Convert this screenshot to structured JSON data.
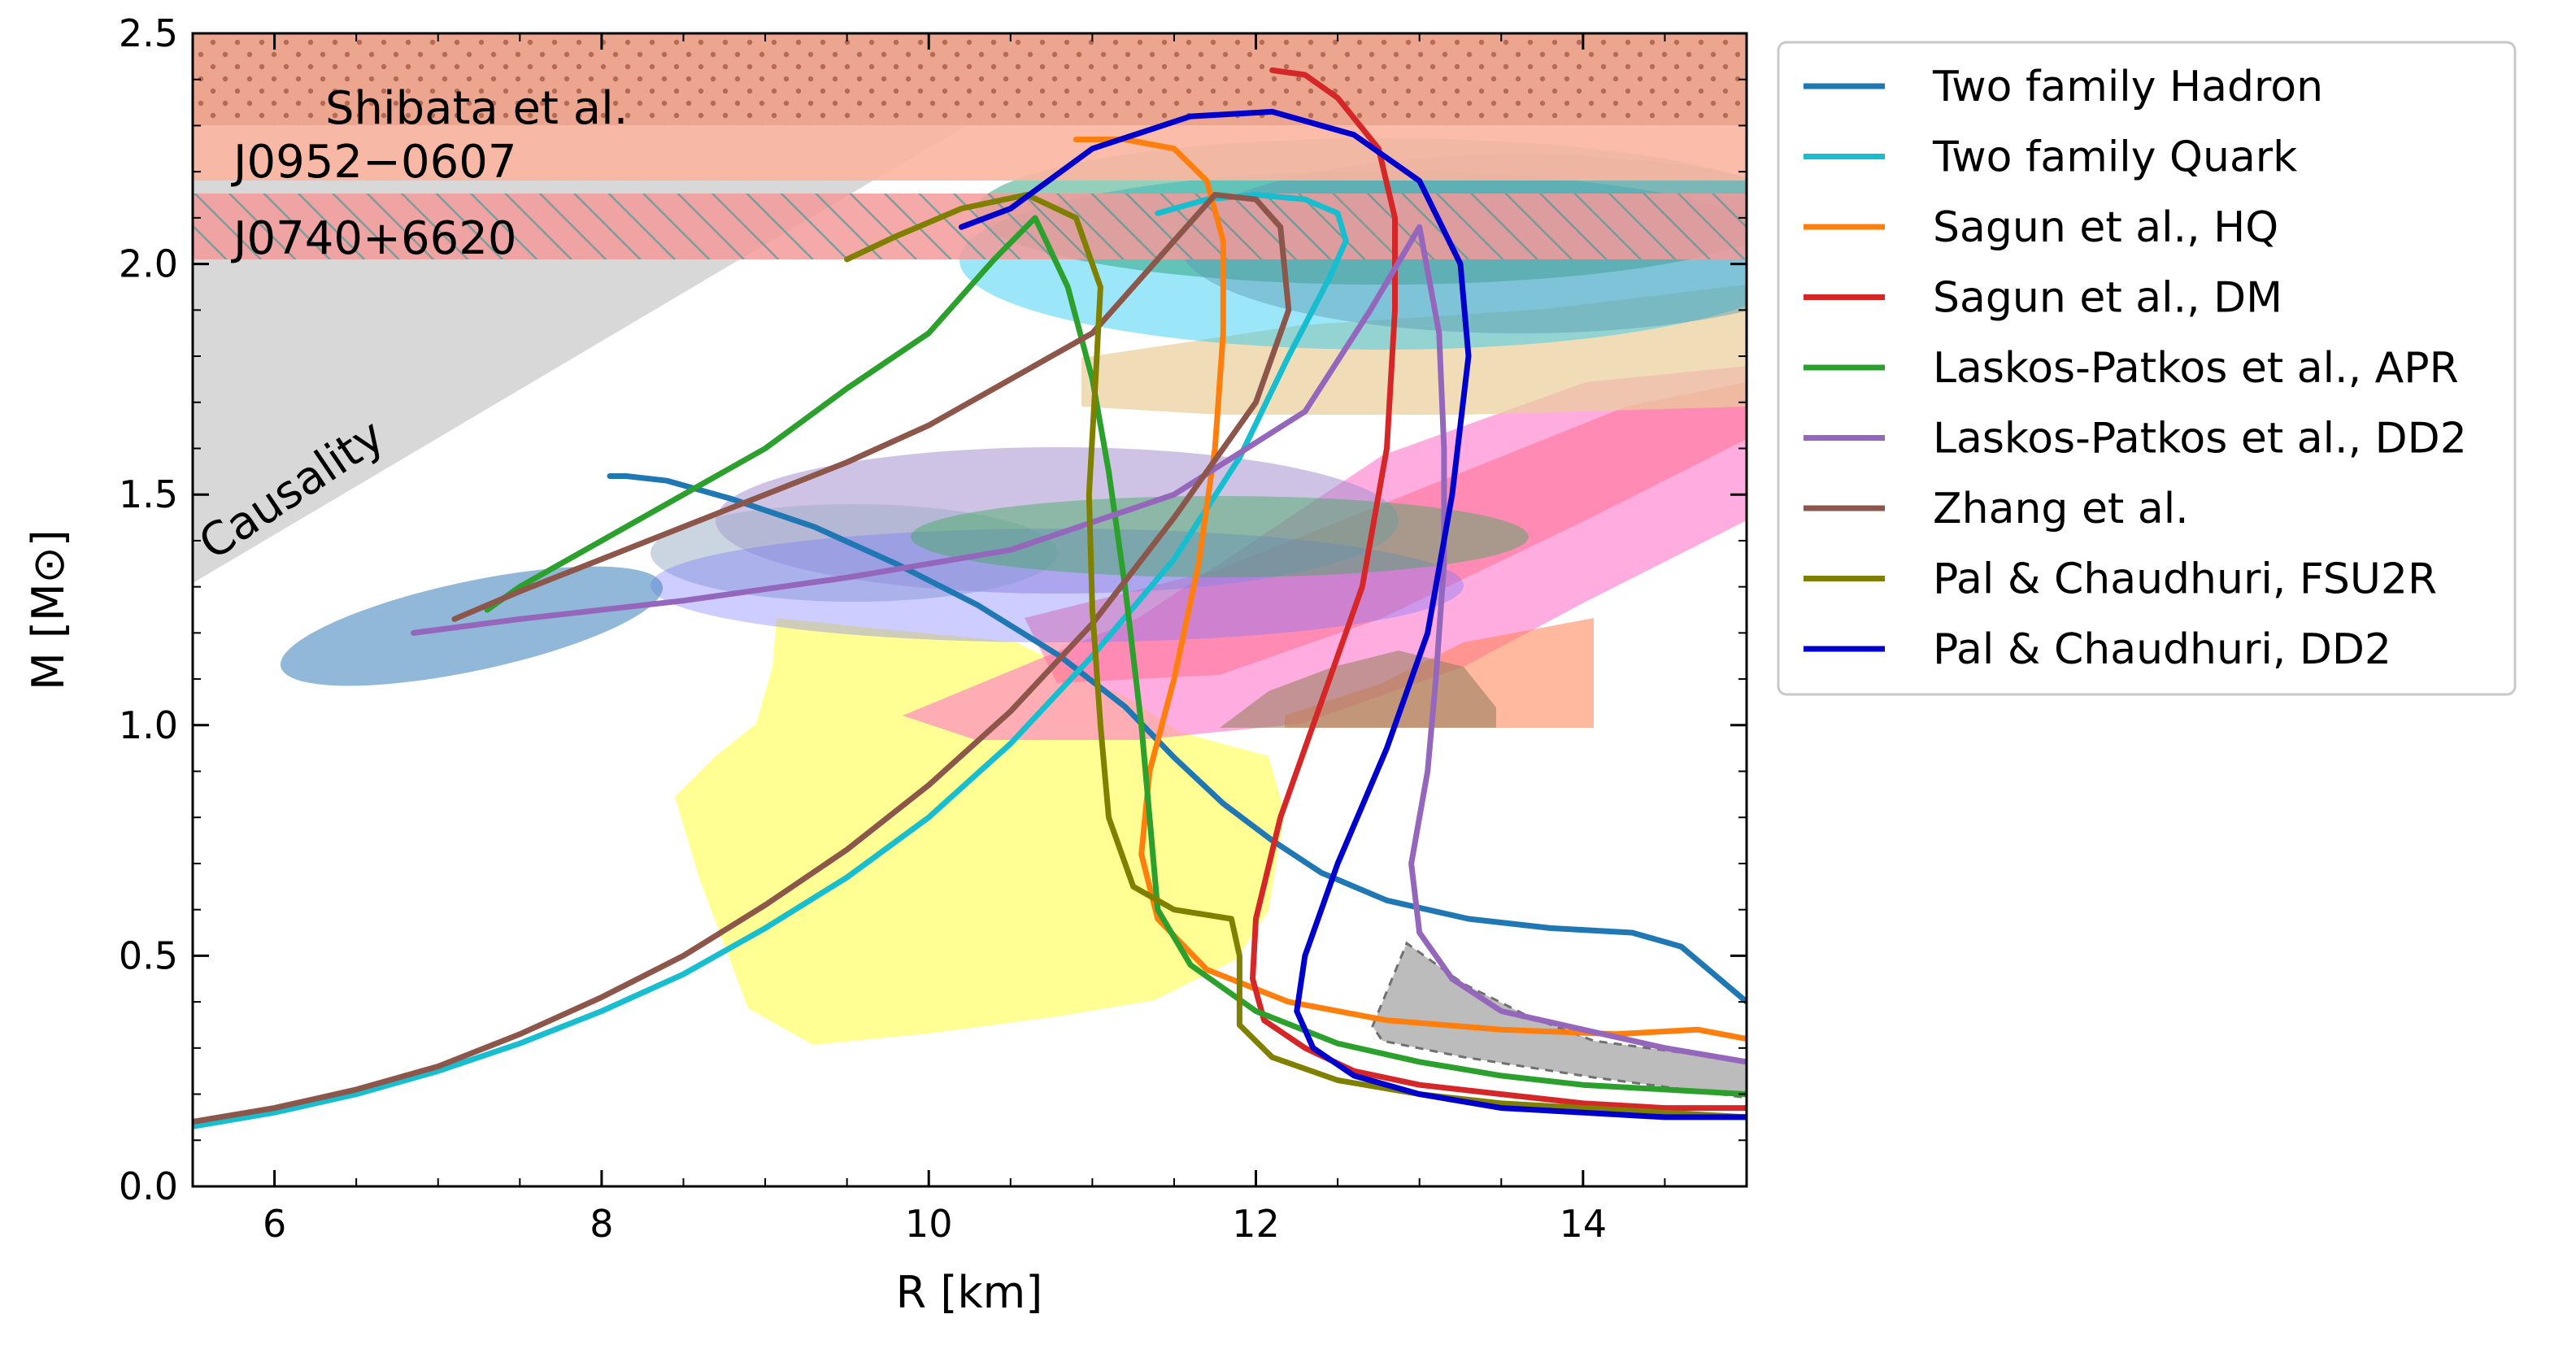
{
  "chart_data": {
    "type": "line",
    "title": "",
    "xlabel": "R [km]",
    "ylabel": "M [M⊙]",
    "xlim": [
      5.5,
      15.0
    ],
    "ylim": [
      0.0,
      2.5
    ],
    "xticks": [
      6,
      8,
      10,
      12,
      14
    ],
    "yticks": [
      0.0,
      0.5,
      1.0,
      1.5,
      2.0,
      2.5
    ],
    "xtick_labels": [
      "6",
      "8",
      "10",
      "12",
      "14"
    ],
    "ytick_labels": [
      "0.0",
      "0.5",
      "1.0",
      "1.5",
      "2.0",
      "2.5"
    ],
    "legend_position": "outside-right-top",
    "annotations": [
      {
        "text": "Shibata et al.",
        "x": 6.3,
        "y": 2.21,
        "rotation": 0
      },
      {
        "text": "J0952−0607",
        "x": 5.75,
        "y": 2.2,
        "rotation": 0
      },
      {
        "text": "J0740+6620",
        "x": 5.75,
        "y": 2.03,
        "rotation": 0
      },
      {
        "text": "Causality",
        "x": 5.6,
        "y": 1.37,
        "rotation": -34
      }
    ],
    "bands": [
      {
        "name": "Shibata et al.",
        "ymin": 2.3,
        "ymax": 2.5,
        "color": "#e8a48f",
        "style": "dotted"
      },
      {
        "name": "J0952−0607",
        "ymin": 2.18,
        "ymax": 2.5,
        "color": "#fbbba6",
        "style": "solid"
      },
      {
        "name": "J0740+6620",
        "ymin": 2.01,
        "ymax": 2.15,
        "color": "#f2a0a0",
        "style": "hatched"
      }
    ],
    "series": [
      {
        "name": "Two family Hadron",
        "color": "#1f77b4",
        "points": [
          [
            8.05,
            1.54
          ],
          [
            8.15,
            1.54
          ],
          [
            8.4,
            1.53
          ],
          [
            8.8,
            1.49
          ],
          [
            9.3,
            1.43
          ],
          [
            9.8,
            1.35
          ],
          [
            10.3,
            1.26
          ],
          [
            10.8,
            1.15
          ],
          [
            11.2,
            1.04
          ],
          [
            11.5,
            0.93
          ],
          [
            11.8,
            0.83
          ],
          [
            12.1,
            0.75
          ],
          [
            12.4,
            0.68
          ],
          [
            12.8,
            0.62
          ],
          [
            13.3,
            0.58
          ],
          [
            13.8,
            0.56
          ],
          [
            14.3,
            0.55
          ],
          [
            14.6,
            0.52
          ],
          [
            14.8,
            0.46
          ],
          [
            15.0,
            0.4
          ]
        ]
      },
      {
        "name": "Two family Quark",
        "color": "#17becf",
        "points": [
          [
            5.5,
            0.13
          ],
          [
            6.0,
            0.16
          ],
          [
            6.5,
            0.2
          ],
          [
            7.0,
            0.25
          ],
          [
            7.5,
            0.31
          ],
          [
            8.0,
            0.38
          ],
          [
            8.5,
            0.46
          ],
          [
            9.0,
            0.56
          ],
          [
            9.5,
            0.67
          ],
          [
            10.0,
            0.8
          ],
          [
            10.5,
            0.96
          ],
          [
            11.0,
            1.15
          ],
          [
            11.5,
            1.36
          ],
          [
            11.9,
            1.58
          ],
          [
            12.2,
            1.8
          ],
          [
            12.45,
            1.97
          ],
          [
            12.55,
            2.05
          ],
          [
            12.5,
            2.11
          ],
          [
            12.3,
            2.14
          ],
          [
            12.0,
            2.15
          ],
          [
            11.7,
            2.14
          ],
          [
            11.4,
            2.11
          ]
        ]
      },
      {
        "name": "Sagun et al., HQ",
        "color": "#ff7f0e",
        "points": [
          [
            15.0,
            0.32
          ],
          [
            14.7,
            0.34
          ],
          [
            14.2,
            0.33
          ],
          [
            13.5,
            0.34
          ],
          [
            12.8,
            0.36
          ],
          [
            12.2,
            0.4
          ],
          [
            11.7,
            0.47
          ],
          [
            11.4,
            0.58
          ],
          [
            11.3,
            0.72
          ],
          [
            11.35,
            0.9
          ],
          [
            11.5,
            1.1
          ],
          [
            11.65,
            1.35
          ],
          [
            11.75,
            1.6
          ],
          [
            11.8,
            1.85
          ],
          [
            11.8,
            2.05
          ],
          [
            11.7,
            2.18
          ],
          [
            11.5,
            2.25
          ],
          [
            11.2,
            2.27
          ],
          [
            10.9,
            2.27
          ]
        ]
      },
      {
        "name": "Sagun et al., DM",
        "color": "#d62728",
        "points": [
          [
            15.0,
            0.17
          ],
          [
            14.5,
            0.17
          ],
          [
            14.0,
            0.18
          ],
          [
            13.5,
            0.2
          ],
          [
            13.0,
            0.22
          ],
          [
            12.6,
            0.25
          ],
          [
            12.3,
            0.3
          ],
          [
            12.05,
            0.36
          ],
          [
            11.98,
            0.45
          ],
          [
            12.0,
            0.58
          ],
          [
            12.15,
            0.8
          ],
          [
            12.4,
            1.05
          ],
          [
            12.65,
            1.3
          ],
          [
            12.8,
            1.6
          ],
          [
            12.85,
            1.9
          ],
          [
            12.85,
            2.1
          ],
          [
            12.75,
            2.25
          ],
          [
            12.5,
            2.36
          ],
          [
            12.3,
            2.41
          ],
          [
            12.1,
            2.42
          ]
        ]
      },
      {
        "name": "Laskos-Patkos et al., APR",
        "color": "#2ca02c",
        "points": [
          [
            15.0,
            0.2
          ],
          [
            14.5,
            0.21
          ],
          [
            14.0,
            0.22
          ],
          [
            13.5,
            0.24
          ],
          [
            13.0,
            0.27
          ],
          [
            12.5,
            0.31
          ],
          [
            12.0,
            0.38
          ],
          [
            11.6,
            0.48
          ],
          [
            11.4,
            0.6
          ],
          [
            11.35,
            0.8
          ],
          [
            11.3,
            1.0
          ],
          [
            11.2,
            1.3
          ],
          [
            11.1,
            1.55
          ],
          [
            11.0,
            1.75
          ],
          [
            10.85,
            1.95
          ],
          [
            10.65,
            2.1
          ],
          [
            10.4,
            2.01
          ],
          [
            10.0,
            1.85
          ],
          [
            9.5,
            1.73
          ],
          [
            9.0,
            1.6
          ],
          [
            8.5,
            1.5
          ],
          [
            8.0,
            1.4
          ],
          [
            7.5,
            1.3
          ],
          [
            7.3,
            1.25
          ]
        ]
      },
      {
        "name": "Laskos-Patkos et al., DD2",
        "color": "#9467bd",
        "points": [
          [
            15.0,
            0.27
          ],
          [
            14.5,
            0.3
          ],
          [
            14.0,
            0.34
          ],
          [
            13.5,
            0.38
          ],
          [
            13.2,
            0.45
          ],
          [
            13.0,
            0.55
          ],
          [
            12.95,
            0.7
          ],
          [
            13.05,
            0.9
          ],
          [
            13.1,
            1.1
          ],
          [
            13.15,
            1.35
          ],
          [
            13.15,
            1.6
          ],
          [
            13.12,
            1.85
          ],
          [
            13.0,
            2.08
          ],
          [
            12.7,
            1.9
          ],
          [
            12.3,
            1.68
          ],
          [
            11.5,
            1.5
          ],
          [
            10.5,
            1.38
          ],
          [
            9.5,
            1.32
          ],
          [
            8.5,
            1.27
          ],
          [
            7.5,
            1.23
          ],
          [
            6.85,
            1.2
          ]
        ]
      },
      {
        "name": "Zhang et al.",
        "color": "#8c564b",
        "points": [
          [
            5.5,
            0.14
          ],
          [
            6.0,
            0.17
          ],
          [
            6.5,
            0.21
          ],
          [
            7.0,
            0.26
          ],
          [
            7.5,
            0.33
          ],
          [
            8.0,
            0.41
          ],
          [
            8.5,
            0.5
          ],
          [
            9.0,
            0.61
          ],
          [
            9.5,
            0.73
          ],
          [
            10.0,
            0.87
          ],
          [
            10.5,
            1.03
          ],
          [
            11.0,
            1.22
          ],
          [
            11.5,
            1.45
          ],
          [
            12.0,
            1.7
          ],
          [
            12.2,
            1.9
          ],
          [
            12.15,
            2.08
          ],
          [
            12.0,
            2.14
          ],
          [
            11.75,
            2.15
          ],
          [
            11.5,
            2.05
          ],
          [
            11.0,
            1.85
          ],
          [
            10.5,
            1.75
          ],
          [
            10.0,
            1.65
          ],
          [
            9.5,
            1.57
          ],
          [
            9.0,
            1.5
          ],
          [
            8.5,
            1.43
          ],
          [
            8.0,
            1.36
          ],
          [
            7.5,
            1.29
          ],
          [
            7.1,
            1.23
          ]
        ]
      },
      {
        "name": "Pal & Chaudhuri, FSU2R",
        "color": "#808000",
        "points": [
          [
            15.0,
            0.15
          ],
          [
            14.5,
            0.16
          ],
          [
            14.0,
            0.17
          ],
          [
            13.5,
            0.18
          ],
          [
            13.0,
            0.2
          ],
          [
            12.5,
            0.23
          ],
          [
            12.1,
            0.28
          ],
          [
            11.9,
            0.35
          ],
          [
            11.9,
            0.5
          ],
          [
            11.85,
            0.58
          ],
          [
            11.5,
            0.6
          ],
          [
            11.25,
            0.65
          ],
          [
            11.1,
            0.8
          ],
          [
            11.05,
            1.0
          ],
          [
            11.0,
            1.25
          ],
          [
            10.98,
            1.5
          ],
          [
            11.02,
            1.75
          ],
          [
            11.05,
            1.95
          ],
          [
            10.9,
            2.1
          ],
          [
            10.6,
            2.15
          ],
          [
            10.2,
            2.12
          ],
          [
            9.8,
            2.06
          ],
          [
            9.5,
            2.01
          ]
        ]
      },
      {
        "name": "Pal & Chaudhuri, DD2",
        "color": "#0000cd",
        "points": [
          [
            15.0,
            0.15
          ],
          [
            14.5,
            0.15
          ],
          [
            14.0,
            0.16
          ],
          [
            13.5,
            0.17
          ],
          [
            13.0,
            0.2
          ],
          [
            12.6,
            0.24
          ],
          [
            12.35,
            0.3
          ],
          [
            12.25,
            0.38
          ],
          [
            12.3,
            0.5
          ],
          [
            12.5,
            0.7
          ],
          [
            12.8,
            0.95
          ],
          [
            13.05,
            1.2
          ],
          [
            13.2,
            1.5
          ],
          [
            13.3,
            1.8
          ],
          [
            13.25,
            2.0
          ],
          [
            13.0,
            2.18
          ],
          [
            12.6,
            2.28
          ],
          [
            12.1,
            2.33
          ],
          [
            11.6,
            2.32
          ],
          [
            11.0,
            2.25
          ],
          [
            10.5,
            2.12
          ],
          [
            10.2,
            2.08
          ]
        ]
      }
    ]
  }
}
